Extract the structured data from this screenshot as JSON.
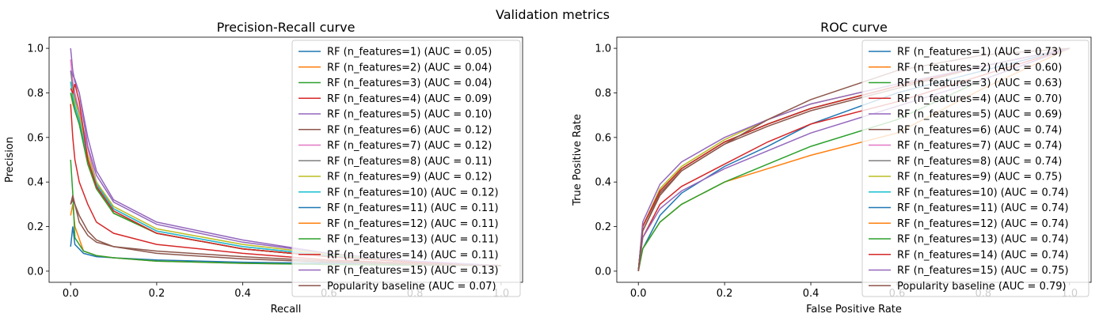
{
  "suptitle": "Validation metrics",
  "chart_data": [
    {
      "type": "line",
      "title": "Precision-Recall curve",
      "xlabel": "Recall",
      "ylabel": "Precision",
      "xlim": [
        -0.05,
        1.05
      ],
      "ylim": [
        -0.05,
        1.05
      ],
      "xticks": [
        "0.0",
        "0.2",
        "0.4",
        "0.6",
        "0.8",
        "1.0"
      ],
      "yticks": [
        "0.0",
        "0.2",
        "0.4",
        "0.6",
        "0.8",
        "1.0"
      ],
      "legend_position": "upper-right",
      "grid": false,
      "series": [
        {
          "name": "RF (n_features=1) (AUC = 0.05)",
          "color": "#1f77b4",
          "x": [
            0,
            0.005,
            0.01,
            0.03,
            0.06,
            0.1,
            0.2,
            0.4,
            0.6,
            0.8,
            1.0
          ],
          "y": [
            0.11,
            0.2,
            0.12,
            0.08,
            0.065,
            0.06,
            0.05,
            0.04,
            0.035,
            0.03,
            0.025
          ]
        },
        {
          "name": "RF (n_features=2) (AUC = 0.04)",
          "color": "#ff7f0e",
          "x": [
            0,
            0.005,
            0.01,
            0.03,
            0.06,
            0.1,
            0.2,
            0.4,
            0.6,
            0.8,
            1.0
          ],
          "y": [
            0.25,
            0.3,
            0.2,
            0.09,
            0.07,
            0.06,
            0.045,
            0.035,
            0.03,
            0.027,
            0.025
          ]
        },
        {
          "name": "RF (n_features=3) (AUC = 0.04)",
          "color": "#2ca02c",
          "x": [
            0,
            0.005,
            0.01,
            0.03,
            0.06,
            0.1,
            0.2,
            0.4,
            0.6,
            0.8,
            1.0
          ],
          "y": [
            0.5,
            0.35,
            0.15,
            0.09,
            0.07,
            0.06,
            0.045,
            0.035,
            0.03,
            0.027,
            0.025
          ]
        },
        {
          "name": "RF (n_features=4) (AUC = 0.09)",
          "color": "#d62728",
          "x": [
            0,
            0.005,
            0.01,
            0.02,
            0.04,
            0.06,
            0.1,
            0.2,
            0.4,
            0.6,
            0.8,
            1.0
          ],
          "y": [
            0.75,
            0.6,
            0.5,
            0.4,
            0.3,
            0.22,
            0.17,
            0.12,
            0.08,
            0.05,
            0.035,
            0.025
          ]
        },
        {
          "name": "RF (n_features=5) (AUC = 0.10)",
          "color": "#9467bd",
          "x": [
            0,
            0.005,
            0.01,
            0.02,
            0.04,
            0.06,
            0.1,
            0.2,
            0.4,
            0.6,
            0.8,
            1.0
          ],
          "y": [
            1.0,
            0.9,
            0.85,
            0.8,
            0.6,
            0.45,
            0.32,
            0.22,
            0.14,
            0.08,
            0.04,
            0.025
          ]
        },
        {
          "name": "RF (n_features=6) (AUC = 0.12)",
          "color": "#8c564b",
          "x": [
            0,
            0.005,
            0.01,
            0.02,
            0.04,
            0.06,
            0.1,
            0.2,
            0.4,
            0.6,
            0.8,
            1.0
          ],
          "y": [
            0.3,
            0.34,
            0.3,
            0.22,
            0.16,
            0.13,
            0.11,
            0.09,
            0.065,
            0.045,
            0.033,
            0.025
          ]
        },
        {
          "name": "RF (n_features=7) (AUC = 0.12)",
          "color": "#e377c2",
          "x": [
            0,
            0.005,
            0.01,
            0.02,
            0.04,
            0.06,
            0.1,
            0.2,
            0.4,
            0.6,
            0.8,
            1.0
          ],
          "y": [
            0.95,
            0.85,
            0.8,
            0.72,
            0.55,
            0.4,
            0.28,
            0.18,
            0.11,
            0.07,
            0.04,
            0.025
          ]
        },
        {
          "name": "RF (n_features=8) (AUC = 0.11)",
          "color": "#7f7f7f",
          "x": [
            0,
            0.005,
            0.01,
            0.02,
            0.04,
            0.06,
            0.1,
            0.2,
            0.4,
            0.6,
            0.8,
            1.0
          ],
          "y": [
            0.9,
            0.82,
            0.78,
            0.7,
            0.5,
            0.38,
            0.27,
            0.17,
            0.1,
            0.065,
            0.04,
            0.025
          ]
        },
        {
          "name": "RF (n_features=9) (AUC = 0.12)",
          "color": "#bcbd22",
          "x": [
            0,
            0.005,
            0.01,
            0.02,
            0.04,
            0.06,
            0.1,
            0.2,
            0.4,
            0.6,
            0.8,
            1.0
          ],
          "y": [
            0.85,
            0.8,
            0.76,
            0.7,
            0.52,
            0.4,
            0.29,
            0.19,
            0.12,
            0.075,
            0.04,
            0.025
          ]
        },
        {
          "name": "RF (n_features=10) (AUC = 0.12)",
          "color": "#17becf",
          "x": [
            0,
            0.005,
            0.01,
            0.02,
            0.04,
            0.06,
            0.1,
            0.2,
            0.4,
            0.6,
            0.8,
            1.0
          ],
          "y": [
            0.85,
            0.78,
            0.74,
            0.68,
            0.5,
            0.39,
            0.28,
            0.18,
            0.11,
            0.07,
            0.04,
            0.025
          ]
        },
        {
          "name": "RF (n_features=11) (AUC = 0.11)",
          "color": "#1f77b4",
          "x": [
            0,
            0.005,
            0.01,
            0.02,
            0.04,
            0.06,
            0.1,
            0.2,
            0.4,
            0.6,
            0.8,
            1.0
          ],
          "y": [
            0.8,
            0.76,
            0.72,
            0.66,
            0.48,
            0.37,
            0.26,
            0.17,
            0.1,
            0.065,
            0.04,
            0.025
          ]
        },
        {
          "name": "RF (n_features=12) (AUC = 0.11)",
          "color": "#ff7f0e",
          "x": [
            0,
            0.005,
            0.01,
            0.02,
            0.04,
            0.06,
            0.1,
            0.2,
            0.4,
            0.6,
            0.8,
            1.0
          ],
          "y": [
            0.8,
            0.75,
            0.72,
            0.66,
            0.48,
            0.37,
            0.26,
            0.17,
            0.1,
            0.065,
            0.04,
            0.025
          ]
        },
        {
          "name": "RF (n_features=13) (AUC = 0.11)",
          "color": "#2ca02c",
          "x": [
            0,
            0.005,
            0.01,
            0.02,
            0.04,
            0.06,
            0.1,
            0.2,
            0.4,
            0.6,
            0.8,
            1.0
          ],
          "y": [
            0.8,
            0.76,
            0.72,
            0.66,
            0.48,
            0.37,
            0.26,
            0.17,
            0.1,
            0.065,
            0.04,
            0.025
          ]
        },
        {
          "name": "RF (n_features=14) (AUC = 0.11)",
          "color": "#d62728",
          "x": [
            0,
            0.005,
            0.01,
            0.02,
            0.04,
            0.06,
            0.1,
            0.2,
            0.4,
            0.6,
            0.8,
            1.0
          ],
          "y": [
            0.82,
            0.8,
            0.84,
            0.76,
            0.5,
            0.38,
            0.27,
            0.17,
            0.1,
            0.065,
            0.04,
            0.025
          ]
        },
        {
          "name": "RF (n_features=15) (AUC = 0.13)",
          "color": "#9467bd",
          "x": [
            0,
            0.005,
            0.01,
            0.02,
            0.04,
            0.06,
            0.1,
            0.2,
            0.4,
            0.6,
            0.8,
            1.0
          ],
          "y": [
            0.9,
            0.88,
            0.86,
            0.8,
            0.56,
            0.43,
            0.31,
            0.21,
            0.13,
            0.08,
            0.045,
            0.025
          ]
        },
        {
          "name": "Popularity baseline (AUC = 0.07)",
          "color": "#8c564b",
          "x": [
            0,
            0.005,
            0.01,
            0.02,
            0.04,
            0.06,
            0.1,
            0.2,
            0.4,
            0.6,
            0.8,
            1.0
          ],
          "y": [
            0.3,
            0.32,
            0.3,
            0.25,
            0.18,
            0.14,
            0.11,
            0.08,
            0.055,
            0.04,
            0.03,
            0.025
          ]
        }
      ]
    },
    {
      "type": "line",
      "title": "ROC curve",
      "xlabel": "False Positive Rate",
      "ylabel": "True Positive Rate",
      "xlim": [
        -0.05,
        1.05
      ],
      "ylim": [
        -0.05,
        1.05
      ],
      "xticks": [
        "0.0",
        "0.2",
        "0.4",
        "0.6",
        "0.8",
        "1.0"
      ],
      "yticks": [
        "0.0",
        "0.2",
        "0.4",
        "0.6",
        "0.8",
        "1.0"
      ],
      "legend_position": "upper-right",
      "grid": false,
      "series": [
        {
          "name": "RF (n_features=1) (AUC = 0.73)",
          "color": "#1f77b4",
          "x": [
            0,
            0.01,
            0.05,
            0.1,
            0.2,
            0.3,
            0.4,
            0.6,
            0.8,
            1.0
          ],
          "y": [
            0,
            0.1,
            0.25,
            0.35,
            0.47,
            0.56,
            0.66,
            0.8,
            0.9,
            1.0
          ]
        },
        {
          "name": "RF (n_features=2) (AUC = 0.60)",
          "color": "#ff7f0e",
          "x": [
            0,
            0.01,
            0.05,
            0.1,
            0.2,
            0.3,
            0.4,
            0.6,
            0.8,
            1.0
          ],
          "y": [
            0,
            0.1,
            0.22,
            0.3,
            0.4,
            0.46,
            0.52,
            0.62,
            0.82,
            1.0
          ]
        },
        {
          "name": "RF (n_features=3) (AUC = 0.63)",
          "color": "#2ca02c",
          "x": [
            0,
            0.01,
            0.05,
            0.1,
            0.2,
            0.3,
            0.4,
            0.6,
            0.8,
            1.0
          ],
          "y": [
            0,
            0.1,
            0.22,
            0.3,
            0.4,
            0.48,
            0.56,
            0.68,
            0.86,
            1.0
          ]
        },
        {
          "name": "RF (n_features=4) (AUC = 0.70)",
          "color": "#d62728",
          "x": [
            0,
            0.01,
            0.05,
            0.1,
            0.2,
            0.3,
            0.4,
            0.6,
            0.8,
            1.0
          ],
          "y": [
            0,
            0.15,
            0.3,
            0.38,
            0.48,
            0.58,
            0.66,
            0.76,
            0.88,
            1.0
          ]
        },
        {
          "name": "RF (n_features=5) (AUC = 0.69)",
          "color": "#9467bd",
          "x": [
            0,
            0.01,
            0.05,
            0.1,
            0.2,
            0.3,
            0.4,
            0.6,
            0.8,
            1.0
          ],
          "y": [
            0,
            0.15,
            0.28,
            0.36,
            0.46,
            0.54,
            0.62,
            0.74,
            0.86,
            1.0
          ]
        },
        {
          "name": "RF (n_features=6) (AUC = 0.74)",
          "color": "#8c564b",
          "x": [
            0,
            0.01,
            0.05,
            0.1,
            0.2,
            0.3,
            0.4,
            0.6,
            0.8,
            1.0
          ],
          "y": [
            0,
            0.18,
            0.35,
            0.45,
            0.57,
            0.65,
            0.72,
            0.82,
            0.92,
            1.0
          ]
        },
        {
          "name": "RF (n_features=7) (AUC = 0.74)",
          "color": "#e377c2",
          "x": [
            0,
            0.01,
            0.05,
            0.1,
            0.2,
            0.3,
            0.4,
            0.6,
            0.8,
            1.0
          ],
          "y": [
            0,
            0.2,
            0.36,
            0.46,
            0.58,
            0.66,
            0.73,
            0.83,
            0.92,
            1.0
          ]
        },
        {
          "name": "RF (n_features=8) (AUC = 0.74)",
          "color": "#7f7f7f",
          "x": [
            0,
            0.01,
            0.05,
            0.1,
            0.2,
            0.3,
            0.4,
            0.6,
            0.8,
            1.0
          ],
          "y": [
            0,
            0.2,
            0.36,
            0.46,
            0.58,
            0.66,
            0.73,
            0.83,
            0.92,
            1.0
          ]
        },
        {
          "name": "RF (n_features=9) (AUC = 0.75)",
          "color": "#bcbd22",
          "x": [
            0,
            0.01,
            0.05,
            0.1,
            0.2,
            0.3,
            0.4,
            0.6,
            0.8,
            1.0
          ],
          "y": [
            0,
            0.2,
            0.37,
            0.47,
            0.59,
            0.68,
            0.75,
            0.84,
            0.92,
            1.0
          ]
        },
        {
          "name": "RF (n_features=10) (AUC = 0.74)",
          "color": "#17becf",
          "x": [
            0,
            0.01,
            0.05,
            0.1,
            0.2,
            0.3,
            0.4,
            0.6,
            0.8,
            1.0
          ],
          "y": [
            0,
            0.2,
            0.36,
            0.46,
            0.58,
            0.66,
            0.73,
            0.83,
            0.92,
            1.0
          ]
        },
        {
          "name": "RF (n_features=11) (AUC = 0.74)",
          "color": "#1f77b4",
          "x": [
            0,
            0.01,
            0.05,
            0.1,
            0.2,
            0.3,
            0.4,
            0.6,
            0.8,
            1.0
          ],
          "y": [
            0,
            0.2,
            0.36,
            0.46,
            0.58,
            0.66,
            0.73,
            0.83,
            0.92,
            1.0
          ]
        },
        {
          "name": "RF (n_features=12) (AUC = 0.74)",
          "color": "#ff7f0e",
          "x": [
            0,
            0.01,
            0.05,
            0.1,
            0.2,
            0.3,
            0.4,
            0.6,
            0.8,
            1.0
          ],
          "y": [
            0,
            0.2,
            0.36,
            0.46,
            0.58,
            0.66,
            0.73,
            0.83,
            0.92,
            1.0
          ]
        },
        {
          "name": "RF (n_features=13) (AUC = 0.74)",
          "color": "#2ca02c",
          "x": [
            0,
            0.01,
            0.05,
            0.1,
            0.2,
            0.3,
            0.4,
            0.6,
            0.8,
            1.0
          ],
          "y": [
            0,
            0.2,
            0.36,
            0.46,
            0.58,
            0.66,
            0.73,
            0.83,
            0.92,
            1.0
          ]
        },
        {
          "name": "RF (n_features=14) (AUC = 0.74)",
          "color": "#d62728",
          "x": [
            0,
            0.01,
            0.05,
            0.1,
            0.2,
            0.3,
            0.4,
            0.6,
            0.8,
            1.0
          ],
          "y": [
            0,
            0.2,
            0.36,
            0.46,
            0.58,
            0.66,
            0.73,
            0.83,
            0.92,
            1.0
          ]
        },
        {
          "name": "RF (n_features=15) (AUC = 0.75)",
          "color": "#9467bd",
          "x": [
            0,
            0.01,
            0.05,
            0.1,
            0.2,
            0.3,
            0.4,
            0.6,
            0.8,
            1.0
          ],
          "y": [
            0,
            0.22,
            0.39,
            0.49,
            0.6,
            0.68,
            0.75,
            0.84,
            0.92,
            1.0
          ]
        },
        {
          "name": "Popularity baseline (AUC = 0.79)",
          "color": "#8c564b",
          "x": [
            0,
            0.01,
            0.05,
            0.1,
            0.2,
            0.3,
            0.4,
            0.6,
            0.8,
            1.0
          ],
          "y": [
            0,
            0.18,
            0.34,
            0.45,
            0.57,
            0.68,
            0.77,
            0.9,
            0.97,
            1.0
          ]
        }
      ]
    }
  ]
}
